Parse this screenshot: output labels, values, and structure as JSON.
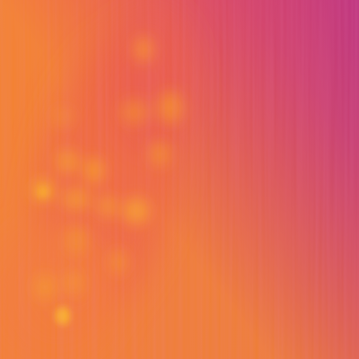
{
  "image": {
    "kind": "thermal-false-color-photo",
    "palette": {
      "cool": "#b1288c",
      "mid": "#d7396e",
      "warm": "#ee5a45",
      "hot": "#f47a2f",
      "peak": "#f7a321"
    }
  }
}
